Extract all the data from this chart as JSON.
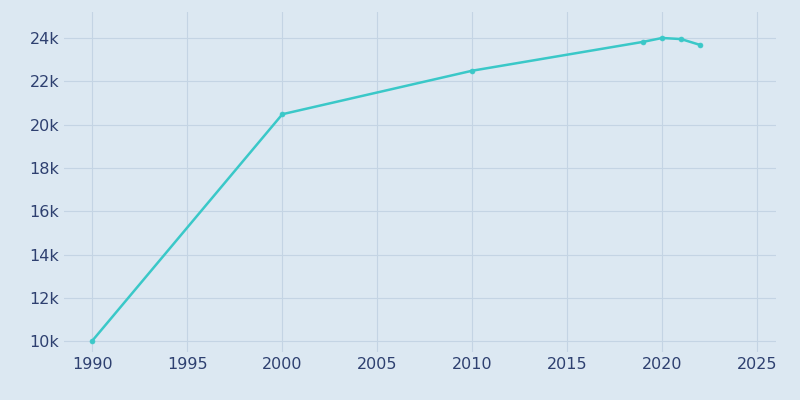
{
  "years": [
    1990,
    2000,
    2010,
    2019,
    2020,
    2021,
    2022
  ],
  "population": [
    10030,
    20480,
    22489,
    23821,
    24000,
    23950,
    23680
  ],
  "line_color": "#3ac8c8",
  "marker_style": "o",
  "marker_size": 3.5,
  "background_color": "#dce8f2",
  "plot_bg_color": "#dce8f2",
  "grid_color": "#c4d4e4",
  "xlim": [
    1988.5,
    2026
  ],
  "ylim": [
    9500,
    25200
  ],
  "xticks": [
    1990,
    1995,
    2000,
    2005,
    2010,
    2015,
    2020,
    2025
  ],
  "yticks": [
    10000,
    12000,
    14000,
    16000,
    18000,
    20000,
    22000,
    24000
  ],
  "tick_label_color": "#2e4070",
  "tick_fontsize": 11.5,
  "linewidth": 1.8
}
